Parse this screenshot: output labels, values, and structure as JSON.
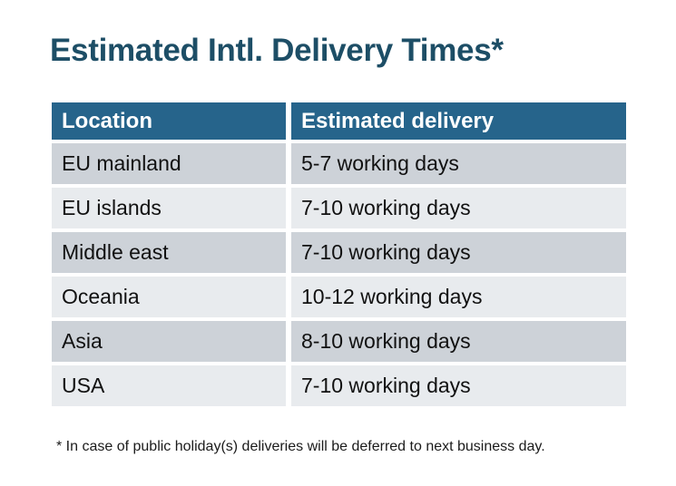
{
  "title": "Estimated Intl. Delivery Times*",
  "footnote": "* In case of public holiday(s) deliveries will be deferred to next business day.",
  "chart_data": {
    "type": "table",
    "title": "Estimated Intl. Delivery Times*",
    "columns": [
      "Location",
      "Estimated delivery"
    ],
    "rows": [
      [
        "EU mainland",
        "5-7 working days"
      ],
      [
        "EU islands",
        "7-10 working days"
      ],
      [
        "Middle east",
        "7-10 working days"
      ],
      [
        "Oceania",
        "10-12 working days"
      ],
      [
        "Asia",
        "8-10 working days"
      ],
      [
        "USA",
        "7-10 working days"
      ]
    ],
    "annotations": [
      "* In case of public holiday(s) deliveries will be deferred to next business day."
    ],
    "layout": {
      "row_striping": "alternating",
      "header_position": "top"
    }
  },
  "colors": {
    "title": "#1d4e66",
    "header_bg": "#26648b",
    "header_text": "#ffffff",
    "row_odd_bg": "#cdd2d8",
    "row_even_bg": "#e8ebee",
    "cell_text": "#111111",
    "footnote_text": "#1b1b1b",
    "page_bg": "#ffffff"
  }
}
